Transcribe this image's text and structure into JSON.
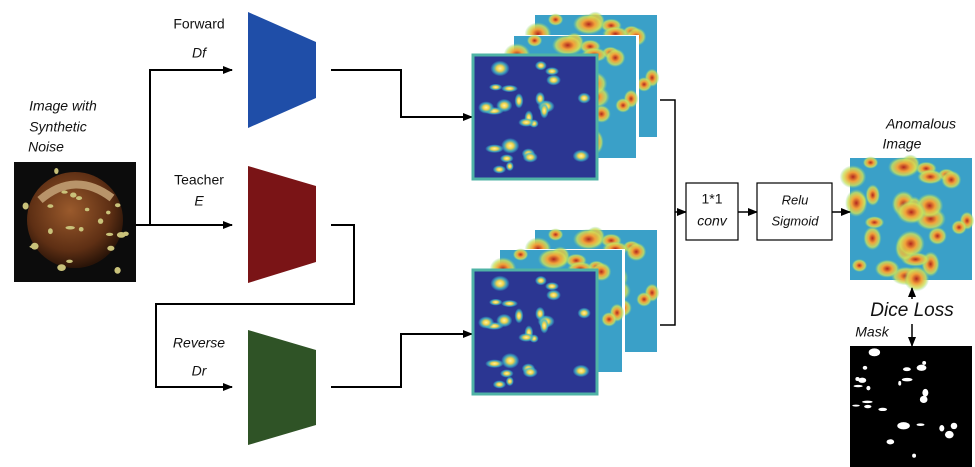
{
  "input": {
    "label": [
      "Image with",
      "Synthetic",
      "Noise"
    ]
  },
  "networks": [
    {
      "name": "Forward",
      "symbol": "Df"
    },
    {
      "name": "Teacher",
      "symbol": "E"
    },
    {
      "name": "Reverse",
      "symbol": "Dr"
    }
  ],
  "conv": {
    "lines": [
      "1*1",
      "conv"
    ]
  },
  "activation": {
    "lines": [
      "Relu",
      "Sigmoid"
    ]
  },
  "output": {
    "label": [
      "Anomalous",
      "Image"
    ]
  },
  "loss": "Dice Loss",
  "mask": "Mask"
}
